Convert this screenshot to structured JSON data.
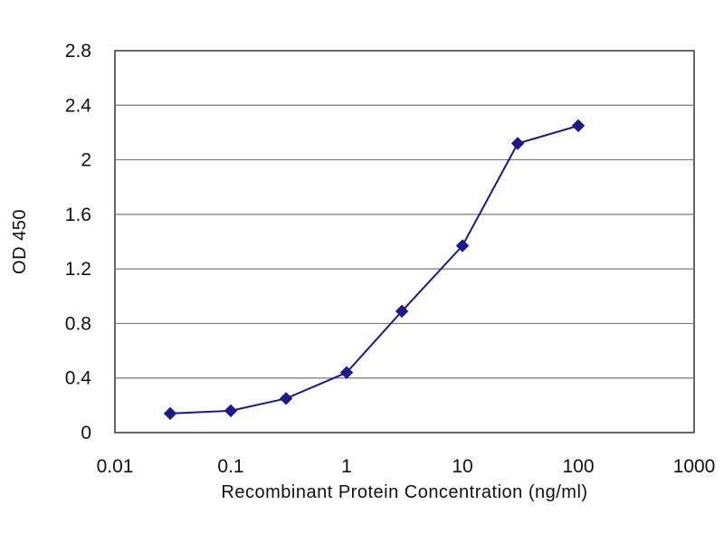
{
  "chart_data": {
    "type": "line",
    "title": "",
    "xlabel": "Recombinant Protein Concentration (ng/ml)",
    "ylabel": "OD 450",
    "xscale": "log",
    "xlim": [
      0.01,
      1000
    ],
    "ylim": [
      0,
      2.8
    ],
    "xticks": [
      0.01,
      0.1,
      1,
      10,
      100,
      1000
    ],
    "xtick_labels": [
      "0.01",
      "0.1",
      "1",
      "10",
      "100",
      "1000"
    ],
    "yticks": [
      0,
      0.4,
      0.8,
      1.2,
      1.6,
      2,
      2.4,
      2.8
    ],
    "ytick_labels": [
      "0",
      "0.4",
      "0.8",
      "1.2",
      "1.6",
      "2",
      "2.4",
      "2.8"
    ],
    "grid": "horizontal",
    "legend": "none",
    "series": [
      {
        "color": "#1a1a8c",
        "marker": "diamond",
        "x": [
          0.03,
          0.1,
          0.3,
          1,
          3,
          10,
          30,
          100
        ],
        "y": [
          0.14,
          0.16,
          0.25,
          0.44,
          0.89,
          1.37,
          2.12,
          2.25
        ]
      }
    ]
  }
}
